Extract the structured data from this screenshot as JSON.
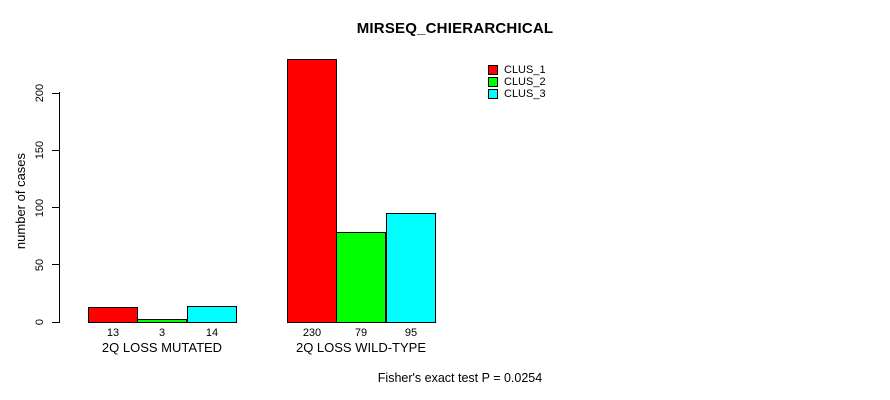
{
  "page": {
    "background": "#ffffff",
    "text_color": "#000000"
  },
  "chart_data": {
    "type": "bar",
    "title": "MIRSEQ_CHIERARCHICAL",
    "xlabel": "",
    "ylabel": "number of cases",
    "categories": [
      "2Q LOSS MUTATED",
      "2Q LOSS WILD-TYPE"
    ],
    "series": [
      {
        "name": "CLUS_1",
        "color": "#ff0000",
        "values": [
          13,
          230
        ]
      },
      {
        "name": "CLUS_2",
        "color": "#00ff00",
        "values": [
          3,
          79
        ]
      },
      {
        "name": "CLUS_3",
        "color": "#00ffff",
        "values": [
          14,
          95
        ]
      }
    ],
    "bar_value_labels": [
      [
        "13",
        "3",
        "14"
      ],
      [
        "230",
        "79",
        "95"
      ]
    ],
    "yticks": [
      0,
      50,
      100,
      150,
      200
    ],
    "ylim": [
      0,
      232
    ],
    "grid": false,
    "bar_border_color": "#000000",
    "legend_position": "top-right",
    "legend_entries": [
      "CLUS_1",
      "CLUS_2",
      "CLUS_3"
    ],
    "annotation": "Fisher's exact test P = 0.0254"
  }
}
